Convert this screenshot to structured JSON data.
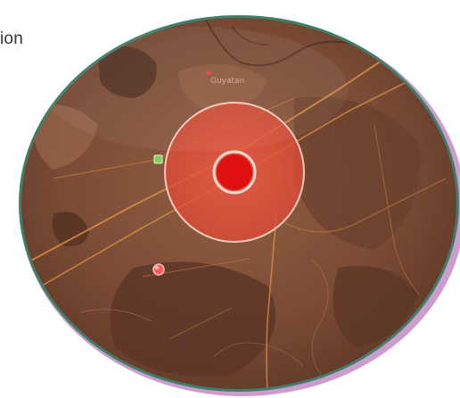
{
  "header": {
    "partial_text": "ion"
  },
  "map": {
    "view": "satellite",
    "labels": [
      {
        "id": "town-north",
        "text": "Guyatan"
      }
    ],
    "colors": {
      "blast_outer": "#e9503c",
      "blast_inner": "#e01010",
      "blast_ring": "#f5c8bc",
      "tint": "#b04a3a",
      "road": "#e9a44a",
      "rim_outer": "#c78ec8",
      "rim_inner": "#3d8a7a"
    },
    "icons": {
      "marker_red": "red-dot-marker-icon",
      "marker_green": "green-square-marker-icon"
    }
  }
}
